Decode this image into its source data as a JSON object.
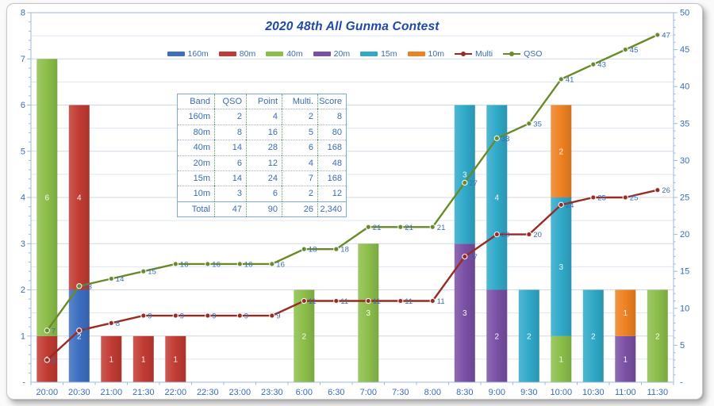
{
  "title": "2020 48th All Gunma Contest",
  "legend": {
    "items": [
      {
        "label": "160m",
        "type": "bar",
        "color": "#3D6EC0"
      },
      {
        "label": "80m",
        "type": "bar",
        "color": "#C13B32"
      },
      {
        "label": "40m",
        "type": "bar",
        "color": "#8CBE4A"
      },
      {
        "label": "20m",
        "type": "bar",
        "color": "#7A50A5"
      },
      {
        "label": "15m",
        "type": "bar",
        "color": "#30A9C9"
      },
      {
        "label": "10m",
        "type": "bar",
        "color": "#EE8122"
      },
      {
        "label": "Multi",
        "type": "line",
        "color": "#992B22"
      },
      {
        "label": "QSO",
        "type": "line",
        "color": "#6A8A2A"
      }
    ]
  },
  "table": {
    "headers": [
      "Band",
      "QSO",
      "Point",
      "Multi.",
      "Score"
    ],
    "rows": [
      [
        "160m",
        "2",
        "4",
        "2",
        "8"
      ],
      [
        "80m",
        "8",
        "16",
        "5",
        "80"
      ],
      [
        "40m",
        "14",
        "28",
        "6",
        "168"
      ],
      [
        "20m",
        "6",
        "12",
        "4",
        "48"
      ],
      [
        "15m",
        "14",
        "24",
        "7",
        "168"
      ],
      [
        "10m",
        "3",
        "6",
        "2",
        "12"
      ],
      [
        "Total",
        "47",
        "90",
        "26",
        "2,340"
      ]
    ]
  },
  "chart_data": {
    "type": "combo-stacked-bar-line",
    "title": "2020 48th All Gunma Contest",
    "x_labels": [
      "20:00",
      "20:30",
      "21:00",
      "21:30",
      "22:00",
      "22:30",
      "23:00",
      "23:30",
      "6:00",
      "6:30",
      "7:00",
      "7:30",
      "8:00",
      "8:30",
      "9:00",
      "9:30",
      "10:00",
      "10:30",
      "11:00",
      "11:30"
    ],
    "left_axis": {
      "min": 0,
      "max": 8,
      "major": 1,
      "labels": [
        "-",
        "1",
        "2",
        "3",
        "4",
        "5",
        "6",
        "7",
        "8"
      ]
    },
    "right_axis": {
      "min": 0,
      "max": 50,
      "major": 5,
      "labels": [
        "-",
        "5",
        "10",
        "15",
        "20",
        "25",
        "30",
        "35",
        "40",
        "45",
        "50"
      ]
    },
    "bar_series": [
      {
        "name": "160m",
        "color": "#3D6EC0",
        "values": [
          0,
          2,
          0,
          0,
          0,
          0,
          0,
          0,
          0,
          0,
          0,
          0,
          0,
          0,
          0,
          0,
          0,
          0,
          0,
          0
        ]
      },
      {
        "name": "80m",
        "color": "#C13B32",
        "values": [
          1,
          4,
          1,
          1,
          1,
          0,
          0,
          0,
          0,
          0,
          0,
          0,
          0,
          0,
          0,
          0,
          0,
          0,
          0,
          0
        ]
      },
      {
        "name": "40m",
        "color": "#8CBE4A",
        "values": [
          6,
          0,
          0,
          0,
          0,
          0,
          0,
          0,
          2,
          0,
          3,
          0,
          0,
          0,
          0,
          0,
          1,
          0,
          0,
          2
        ]
      },
      {
        "name": "20m",
        "color": "#7A50A5",
        "values": [
          0,
          0,
          0,
          0,
          0,
          0,
          0,
          0,
          0,
          0,
          0,
          0,
          0,
          3,
          2,
          0,
          0,
          0,
          1,
          0
        ]
      },
      {
        "name": "15m",
        "color": "#30A9C9",
        "values": [
          0,
          0,
          0,
          0,
          0,
          0,
          0,
          0,
          0,
          0,
          0,
          0,
          0,
          3,
          4,
          2,
          3,
          2,
          0,
          0
        ]
      },
      {
        "name": "10m",
        "color": "#EE8122",
        "values": [
          0,
          0,
          0,
          0,
          0,
          0,
          0,
          0,
          0,
          0,
          0,
          0,
          0,
          0,
          0,
          0,
          2,
          0,
          1,
          0
        ]
      }
    ],
    "line_series": [
      {
        "name": "Multi",
        "axis": "right",
        "color": "#992B22",
        "values": [
          3,
          7,
          8,
          9,
          9,
          9,
          9,
          9,
          11,
          11,
          11,
          11,
          11,
          17,
          20,
          20,
          24,
          25,
          25,
          26
        ]
      },
      {
        "name": "QSO",
        "axis": "right",
        "color": "#6A8A2A",
        "values": [
          7,
          13,
          14,
          15,
          16,
          16,
          16,
          16,
          18,
          18,
          21,
          21,
          21,
          27,
          33,
          35,
          41,
          43,
          45,
          47
        ]
      }
    ],
    "colors": {
      "axis_text": "#3A6BB5",
      "grid": "#dde7f2",
      "axis_line": "#9CB8D9",
      "point_label": "#3A6BB5",
      "bar_label": "#ffffff"
    },
    "legend_position": "top",
    "grid": "horizontal-minor-0.5"
  }
}
